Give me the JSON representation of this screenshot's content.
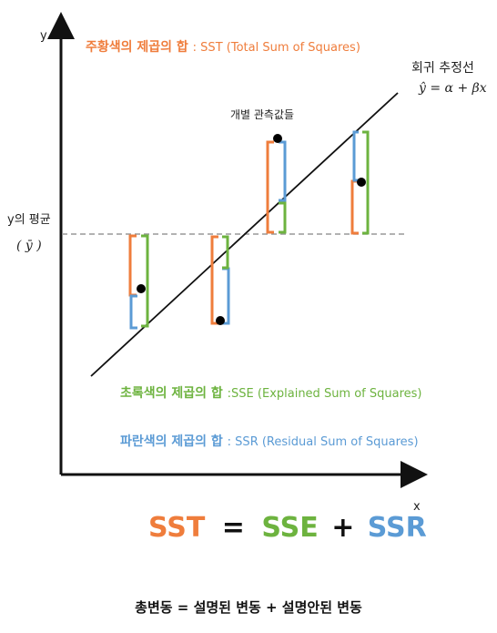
{
  "axes": {
    "y_label": "y",
    "x_label": "x"
  },
  "regression": {
    "title": "회귀 추정선",
    "formula": "ŷ = α + βx"
  },
  "observed_label": "개별 관측값들",
  "mean": {
    "label": "y의 평균",
    "symbol": "( ȳ )"
  },
  "legends": {
    "sst": {
      "ko": "주황색의 제곱의 합",
      "en": ": SST (Total Sum of Squares)"
    },
    "sse": {
      "ko": "초록색의 제곱의 합",
      "en": ":SSE (Explained Sum of Squares)"
    },
    "ssr": {
      "ko": "파란색의 제곱의 합",
      "en": ": SSR (Residual Sum of Squares)"
    }
  },
  "equation": {
    "sst": "SST",
    "equals": "=",
    "sse": "SSE",
    "plus": "+",
    "ssr": "SSR"
  },
  "caption": "총변동 = 설명된 변동 + 설명안된 변동",
  "colors": {
    "orange": "#ef7d3c",
    "green": "#6db33f",
    "blue": "#5b9bd5",
    "axis": "#111111",
    "mean_line": "#999999"
  }
}
